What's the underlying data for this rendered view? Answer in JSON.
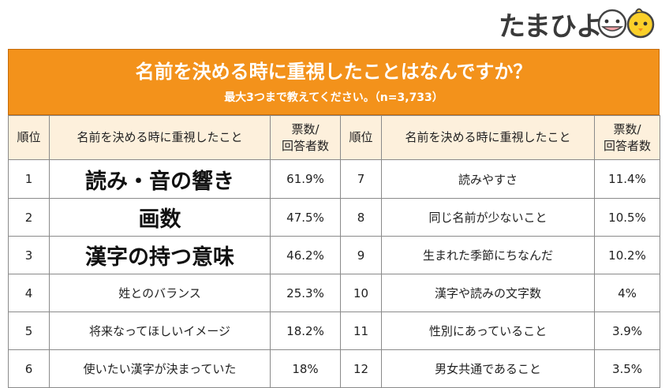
{
  "logo": {
    "text": "たまひよ"
  },
  "header": {
    "title": "名前を決める時に重視したことはなんですか？",
    "subtitle": "最大3つまで教えてください。（n=3,733）"
  },
  "columns": {
    "rank": "順位",
    "item": "名前を決める時に重視したこと",
    "pct_line1": "票数/",
    "pct_line2": "回答者数"
  },
  "colors": {
    "banner": "#f3921b",
    "header_bg": "#fdf0dc",
    "border": "#8a8a8a"
  },
  "rows": [
    {
      "left": {
        "rank": "1",
        "item": "読み・音の響き",
        "pct": "61.9%"
      },
      "right": {
        "rank": "7",
        "item": "読みやすさ",
        "pct": "11.4%"
      }
    },
    {
      "left": {
        "rank": "2",
        "item": "画数",
        "pct": "47.5%"
      },
      "right": {
        "rank": "8",
        "item": "同じ名前が少ないこと",
        "pct": "10.5%"
      }
    },
    {
      "left": {
        "rank": "3",
        "item": "漢字の持つ意味",
        "pct": "46.2%"
      },
      "right": {
        "rank": "9",
        "item": "生まれた季節にちなんだ",
        "pct": "10.2%"
      }
    },
    {
      "left": {
        "rank": "4",
        "item": "姓とのバランス",
        "pct": "25.3%"
      },
      "right": {
        "rank": "10",
        "item": "漢字や読みの文字数",
        "pct": "4%"
      }
    },
    {
      "left": {
        "rank": "5",
        "item": "将来なってほしいイメージ",
        "pct": "18.2%"
      },
      "right": {
        "rank": "11",
        "item": "性別にあっていること",
        "pct": "3.9%"
      }
    },
    {
      "left": {
        "rank": "6",
        "item": "使いたい漢字が決まっていた",
        "pct": "18%"
      },
      "right": {
        "rank": "12",
        "item": "男女共通であること",
        "pct": "3.5%"
      }
    }
  ]
}
